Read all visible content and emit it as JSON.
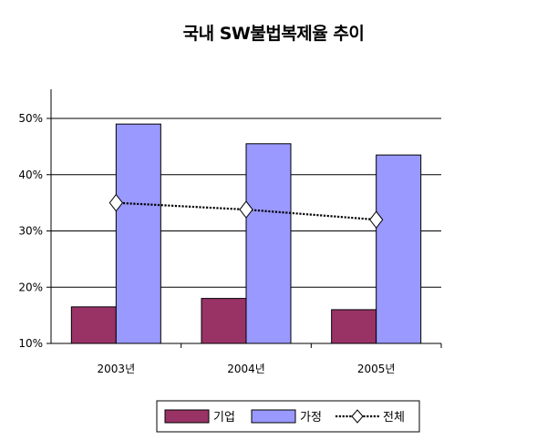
{
  "chart_data": {
    "type": "bar",
    "title": "국내 SW불법복제율 추이",
    "categories": [
      "2003년",
      "2004년",
      "2005년"
    ],
    "series": [
      {
        "name": "기업",
        "type": "bar",
        "color": "#993366",
        "values": [
          16.5,
          18.0,
          16.0
        ]
      },
      {
        "name": "가정",
        "type": "bar",
        "color": "#9999ff",
        "values": [
          49.0,
          45.5,
          43.5
        ]
      },
      {
        "name": "전체",
        "type": "line",
        "marker": "diamond",
        "line_style": "dotted",
        "values": [
          35.0,
          33.8,
          32.0
        ]
      }
    ],
    "ylim": [
      10,
      50
    ],
    "yticks": [
      "10%",
      "20%",
      "30%",
      "40%",
      "50%"
    ],
    "yticks_values": [
      10,
      20,
      30,
      40,
      50
    ],
    "grid": true,
    "legend": "bottom"
  }
}
